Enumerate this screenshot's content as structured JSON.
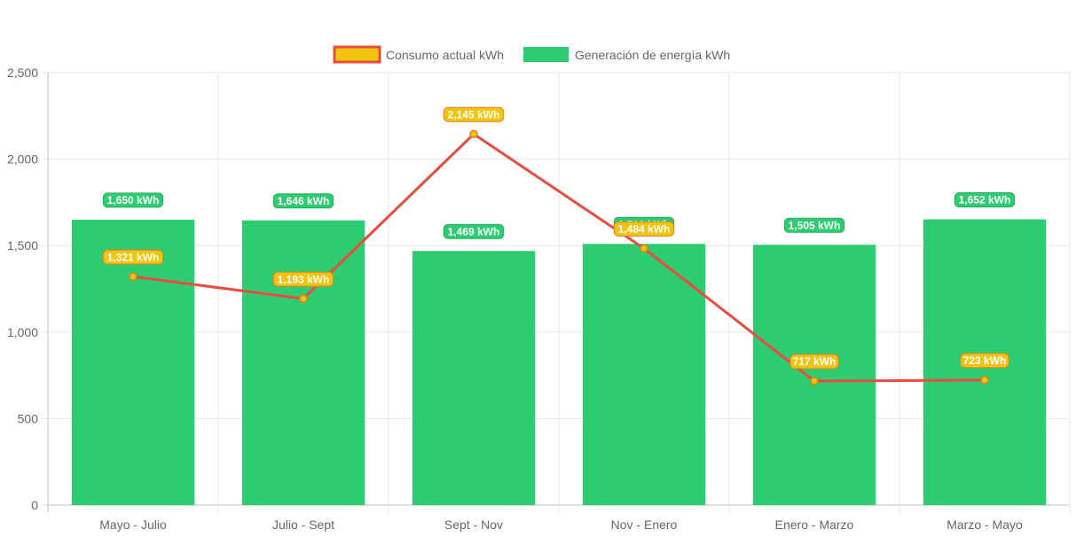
{
  "chart_data": {
    "type": "bar",
    "categories": [
      "Mayo - Julio",
      "Julio - Sept",
      "Sept - Nov",
      "Nov - Enero",
      "Enero - Marzo",
      "Marzo - Mayo"
    ],
    "series": [
      {
        "name": "Generación de energía kWh",
        "type": "bar",
        "values": [
          1650,
          1646,
          1469,
          1510,
          1505,
          1652
        ],
        "labels": [
          "1,650 kWh",
          "1,646 kWh",
          "1,469 kWh",
          "1,510 kWh",
          "1,505 kWh",
          "1,652 kWh"
        ],
        "color": "#2ecc71",
        "label_border": "#27ae60"
      },
      {
        "name": "Consumo actual kWh",
        "type": "line",
        "values": [
          1321,
          1193,
          2145,
          1484,
          717,
          723
        ],
        "labels": [
          "1,321 kWh",
          "1,193 kWh",
          "2,145 kWh",
          "1,484 kWh",
          "717 kWh",
          "723 kWh"
        ],
        "color": "#e74c3c",
        "fill": "#f1c40f",
        "label_border": "#e67e22"
      }
    ],
    "y_ticks": [
      "0",
      "500",
      "1,000",
      "1,500",
      "2,000",
      "2,500"
    ],
    "ylim": [
      0,
      2500
    ],
    "grid": true,
    "legend_position": "top"
  }
}
